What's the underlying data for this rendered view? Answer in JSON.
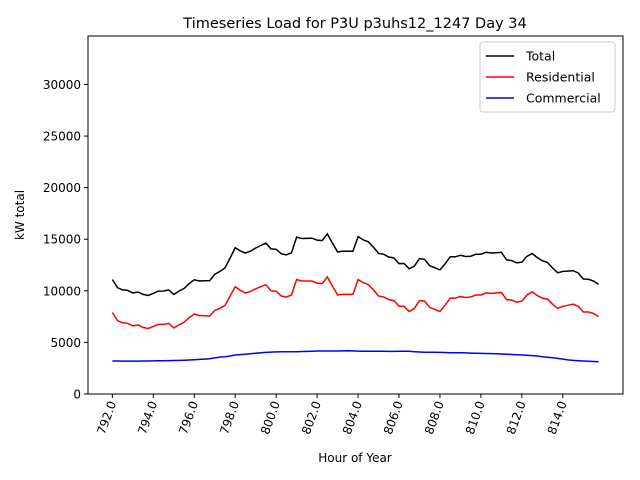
{
  "chart_data": {
    "type": "line",
    "title": "Timeseries Load for P3U p3uhs12_1247  Day 34",
    "xlabel": "Hour of Year",
    "ylabel": "kW total",
    "x_start": 792,
    "x_step": 0.25,
    "xlim": [
      790.81,
      816.94
    ],
    "ylim": [
      0,
      34700
    ],
    "xticks": [
      "792.0",
      "794.0",
      "796.0",
      "798.0",
      "800.0",
      "802.0",
      "804.0",
      "806.0",
      "808.0",
      "810.0",
      "812.0",
      "814.0"
    ],
    "xtick_values": [
      792,
      794,
      796,
      798,
      800,
      802,
      804,
      806,
      808,
      810,
      812,
      814
    ],
    "yticks": [
      "0",
      "5000",
      "10000",
      "15000",
      "20000",
      "25000",
      "30000"
    ],
    "ytick_values": [
      0,
      5000,
      10000,
      15000,
      20000,
      25000,
      30000
    ],
    "grid": false,
    "legend_position": "top-right",
    "series": [
      {
        "name": "Total",
        "color": "#000000",
        "values": [
          11100,
          10300,
          10090,
          10040,
          9790,
          9890,
          9650,
          9550,
          9760,
          9970,
          9980,
          10090,
          9650,
          9960,
          10230,
          10700,
          11070,
          10950,
          10980,
          10970,
          11600,
          11880,
          12220,
          13180,
          14180,
          13870,
          13660,
          13850,
          14150,
          14390,
          14630,
          14060,
          14030,
          13590,
          13490,
          13690,
          15200,
          15070,
          15080,
          15100,
          14920,
          14870,
          15520,
          14620,
          13770,
          13830,
          13840,
          13830,
          15260,
          14950,
          14750,
          14240,
          13640,
          13540,
          13280,
          13180,
          12640,
          12650,
          12140,
          12400,
          13120,
          13050,
          12440,
          12240,
          12030,
          12620,
          13300,
          13300,
          13440,
          13330,
          13360,
          13550,
          13540,
          13730,
          13670,
          13700,
          13730,
          13010,
          12930,
          12710,
          12780,
          13350,
          13620,
          13230,
          12920,
          12760,
          12210,
          11750,
          11880,
          11910,
          11960,
          11730,
          11150,
          11120,
          10950,
          10640
        ]
      },
      {
        "name": "Residential",
        "color": "#ff0000",
        "values": [
          7900,
          7100,
          6900,
          6850,
          6600,
          6700,
          6450,
          6350,
          6550,
          6750,
          6750,
          6850,
          6400,
          6700,
          6950,
          7400,
          7750,
          7600,
          7600,
          7550,
          8100,
          8300,
          8600,
          9500,
          10400,
          10050,
          9800,
          9950,
          10200,
          10400,
          10600,
          10000,
          9950,
          9500,
          9400,
          9600,
          11100,
          10950,
          10950,
          10950,
          10750,
          10700,
          11350,
          10450,
          9600,
          9650,
          9650,
          9650,
          11100,
          10800,
          10600,
          10100,
          9500,
          9400,
          9150,
          9050,
          8500,
          8500,
          8000,
          8300,
          9050,
          9000,
          8400,
          8200,
          8000,
          8600,
          9300,
          9300,
          9450,
          9350,
          9400,
          9600,
          9600,
          9800,
          9750,
          9800,
          9850,
          9150,
          9100,
          8900,
          9000,
          9600,
          9900,
          9550,
          9300,
          9200,
          8700,
          8300,
          8500,
          8600,
          8700,
          8500,
          7950,
          7950,
          7800,
          7500
        ]
      },
      {
        "name": "Commercial",
        "color": "#0000ff",
        "values": [
          3200,
          3200,
          3190,
          3190,
          3190,
          3190,
          3200,
          3200,
          3210,
          3220,
          3230,
          3240,
          3250,
          3260,
          3280,
          3300,
          3320,
          3350,
          3380,
          3420,
          3500,
          3580,
          3620,
          3680,
          3780,
          3820,
          3860,
          3900,
          3950,
          3990,
          4030,
          4060,
          4080,
          4090,
          4090,
          4090,
          4100,
          4120,
          4130,
          4150,
          4170,
          4170,
          4170,
          4170,
          4170,
          4180,
          4190,
          4180,
          4160,
          4150,
          4150,
          4140,
          4140,
          4140,
          4130,
          4130,
          4140,
          4150,
          4140,
          4100,
          4070,
          4050,
          4040,
          4040,
          4030,
          4020,
          4000,
          4000,
          3990,
          3980,
          3960,
          3950,
          3940,
          3930,
          3920,
          3900,
          3880,
          3860,
          3830,
          3810,
          3780,
          3750,
          3720,
          3680,
          3620,
          3560,
          3510,
          3450,
          3380,
          3310,
          3260,
          3230,
          3200,
          3170,
          3150,
          3140
        ]
      }
    ]
  }
}
